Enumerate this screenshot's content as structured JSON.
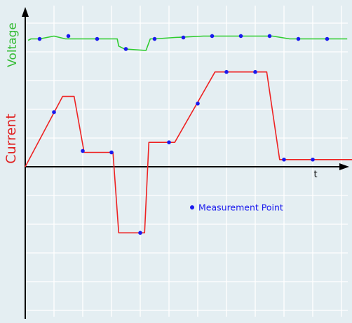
{
  "chart_data": {
    "type": "line",
    "title": "",
    "xlabel": "t",
    "xlim": [
      0,
      11.5
    ],
    "ylim": [
      -5.1,
      5.7
    ],
    "grid": true,
    "ylabels": [
      {
        "text": "Voltage",
        "color": "#33bb33"
      },
      {
        "text": "Current",
        "color": "#e02222"
      }
    ],
    "series": [
      {
        "name": "Voltage",
        "color": "#2ecc2e",
        "x": [
          0.1,
          0.2,
          0.5,
          1.0,
          1.4,
          2.2,
          3.2,
          3.25,
          3.45,
          4.2,
          4.35,
          4.5,
          5.2,
          6.2,
          7.2,
          8.2,
          8.6,
          9.2,
          10.0,
          11.2
        ],
        "y": [
          4.4,
          4.45,
          4.45,
          4.55,
          4.45,
          4.45,
          4.45,
          4.2,
          4.1,
          4.05,
          4.45,
          4.45,
          4.5,
          4.55,
          4.55,
          4.55,
          4.55,
          4.45,
          4.45,
          4.45
        ]
      },
      {
        "name": "Current",
        "color": "#ee2222",
        "x": [
          0,
          1.3,
          1.7,
          2.05,
          3.05,
          3.25,
          4.15,
          4.3,
          5.2,
          6.6,
          8.4,
          8.85,
          11.5
        ],
        "y": [
          0,
          2.45,
          2.45,
          0.5,
          0.5,
          -2.3,
          -2.3,
          0.85,
          0.85,
          3.3,
          3.3,
          0.25,
          0.25
        ]
      }
    ],
    "points": {
      "name": "Measurement Point",
      "color": "#1a1aee",
      "voltage": [
        {
          "x": 0.5,
          "y": 4.45
        },
        {
          "x": 1.5,
          "y": 4.55
        },
        {
          "x": 2.5,
          "y": 4.45
        },
        {
          "x": 3.5,
          "y": 4.1
        },
        {
          "x": 4.5,
          "y": 4.45
        },
        {
          "x": 5.5,
          "y": 4.5
        },
        {
          "x": 6.5,
          "y": 4.55
        },
        {
          "x": 7.5,
          "y": 4.55
        },
        {
          "x": 8.5,
          "y": 4.55
        },
        {
          "x": 9.5,
          "y": 4.45
        },
        {
          "x": 10.5,
          "y": 4.45
        }
      ],
      "current": [
        {
          "x": 1.0,
          "y": 1.9
        },
        {
          "x": 2.0,
          "y": 0.55
        },
        {
          "x": 3.0,
          "y": 0.5
        },
        {
          "x": 4.0,
          "y": -2.3
        },
        {
          "x": 5.0,
          "y": 0.85
        },
        {
          "x": 6.0,
          "y": 2.2
        },
        {
          "x": 7.0,
          "y": 3.3
        },
        {
          "x": 8.0,
          "y": 3.3
        },
        {
          "x": 9.0,
          "y": 0.25
        },
        {
          "x": 10.0,
          "y": 0.25
        }
      ]
    },
    "legend": {
      "label": "Measurement Point",
      "position": "center"
    }
  }
}
